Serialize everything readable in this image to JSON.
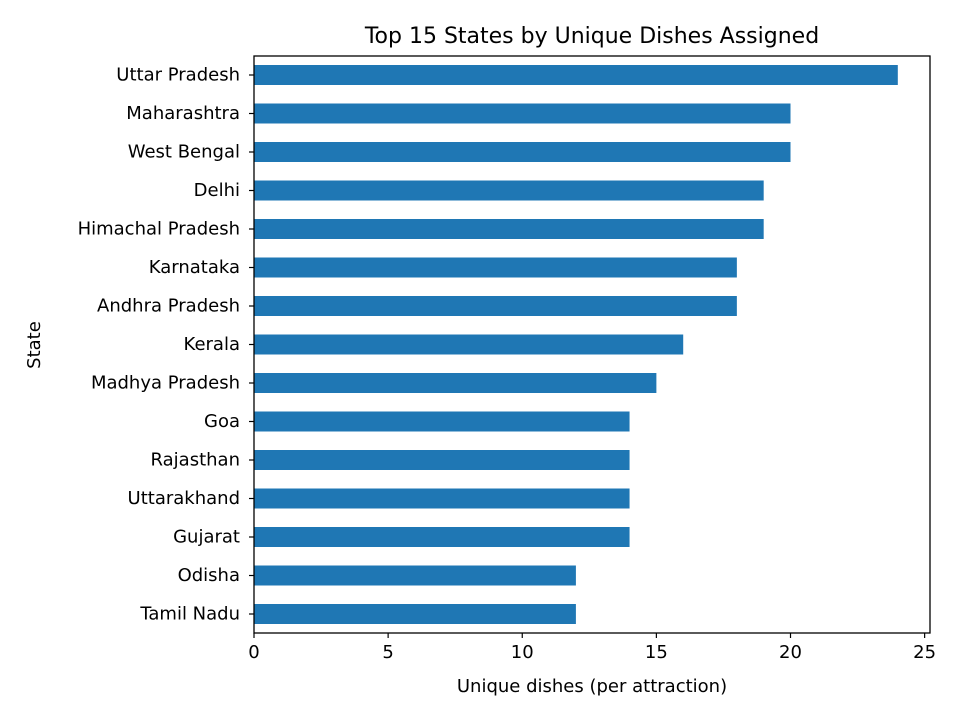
{
  "chart_data": {
    "type": "bar",
    "orientation": "horizontal",
    "title": "Top 15 States by Unique Dishes Assigned",
    "xlabel": "Unique dishes (per attraction)",
    "ylabel": "State",
    "xlim": [
      0,
      25.2
    ],
    "xticks": [
      0,
      5,
      10,
      15,
      20,
      25
    ],
    "grid": false,
    "bar_color": "#1f77b4",
    "categories": [
      "Uttar Pradesh",
      "Maharashtra",
      "West Bengal",
      "Delhi",
      "Himachal Pradesh",
      "Karnataka",
      "Andhra Pradesh",
      "Kerala",
      "Madhya Pradesh",
      "Goa",
      "Rajasthan",
      "Uttarakhand",
      "Gujarat",
      "Odisha",
      "Tamil Nadu"
    ],
    "values": [
      24,
      20,
      20,
      19,
      19,
      18,
      18,
      16,
      15,
      14,
      14,
      14,
      14,
      12,
      12
    ]
  }
}
